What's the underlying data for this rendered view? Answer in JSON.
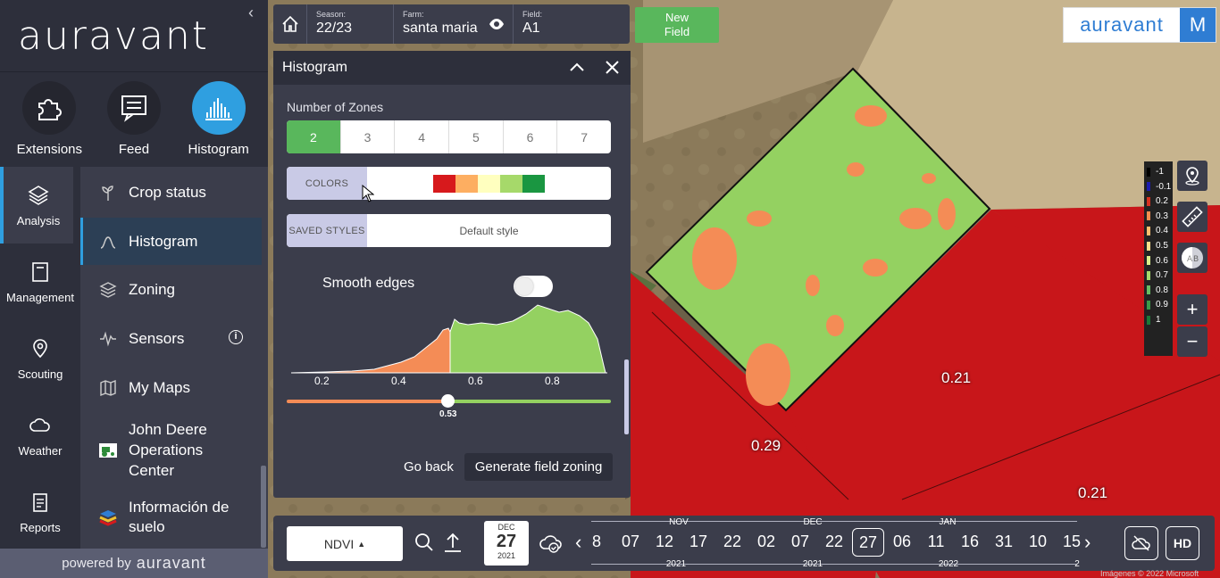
{
  "brand": {
    "name": "auravant"
  },
  "top_tabs": [
    {
      "label": "Extensions",
      "icon": "puzzle-icon"
    },
    {
      "label": "Feed",
      "icon": "feed-icon"
    },
    {
      "label": "Histogram",
      "icon": "histogram-icon"
    }
  ],
  "left_nav": [
    {
      "label": "Analysis",
      "icon": "layers-icon"
    },
    {
      "label": "Management",
      "icon": "notebook-icon"
    },
    {
      "label": "Scouting",
      "icon": "pin-icon"
    },
    {
      "label": "Weather",
      "icon": "cloud-icon"
    },
    {
      "label": "Reports",
      "icon": "report-icon"
    }
  ],
  "menu": [
    {
      "label": "Crop status",
      "icon": "plant-icon"
    },
    {
      "label": "Histogram",
      "icon": "curve-icon"
    },
    {
      "label": "Zoning",
      "icon": "stack-icon"
    },
    {
      "label": "Sensors",
      "icon": "pulse-icon"
    },
    {
      "label": "My Maps",
      "icon": "map-icon"
    },
    {
      "label": "John Deere Operations Center",
      "icon": "tractor-icon"
    },
    {
      "label": "Información de suelo",
      "icon": "soil-icon"
    }
  ],
  "powered_by": {
    "prefix": "powered by",
    "name": "auravant"
  },
  "topbar": {
    "season_caption": "Season:",
    "season": "22/23",
    "farm_caption": "Farm:",
    "farm": "santa maria",
    "field_caption": "Field:",
    "field": "A1",
    "new_field": "New Field"
  },
  "histogram_panel": {
    "title": "Histogram",
    "zones_label": "Number of Zones",
    "zones": [
      "2",
      "3",
      "4",
      "5",
      "6",
      "7"
    ],
    "selected_zone": "2",
    "colors_tag": "COLORS",
    "color_swatches": [
      "#d7191c",
      "#fdae61",
      "#ffffbf",
      "#a6d96a",
      "#1a9641"
    ],
    "saved_styles_tag": "SAVED STYLES",
    "saved_style": "Default style",
    "smooth_edges_label": "Smooth edges",
    "smooth_edges_on": false,
    "ticks": [
      "0.2",
      "0.4",
      "0.6",
      "0.8"
    ],
    "threshold": "0.53",
    "go_back": "Go back",
    "generate": "Generate field zoning"
  },
  "legend": {
    "values": [
      "-1",
      "-0.1",
      "0.2",
      "0.3",
      "0.4",
      "0.5",
      "0.6",
      "0.7",
      "0.8",
      "0.9",
      "1"
    ],
    "colors": [
      "#000000",
      "#1b1bb0",
      "#d7301f",
      "#f58d4f",
      "#fdbf6f",
      "#fee08b",
      "#d9ef8b",
      "#a6d96a",
      "#66bd63",
      "#3a9a48",
      "#1a7837"
    ]
  },
  "map_values": [
    "0.21",
    "0.29",
    "0.21"
  ],
  "timeline": {
    "index": "NDVI",
    "date_month": "DEC",
    "date_day": "27",
    "date_year": "2021",
    "days": [
      "8",
      "07",
      "12",
      "17",
      "22",
      "02",
      "07",
      "22",
      "27",
      "06",
      "11",
      "16",
      "31",
      "10",
      "15"
    ],
    "selected_day": "27",
    "months": [
      "NOV",
      "DEC",
      "JAN"
    ],
    "years": [
      "2021",
      "2021",
      "2022",
      "2"
    ],
    "hd_label": "HD"
  },
  "copyright": "Imágenes © 2022 Microsoft"
}
